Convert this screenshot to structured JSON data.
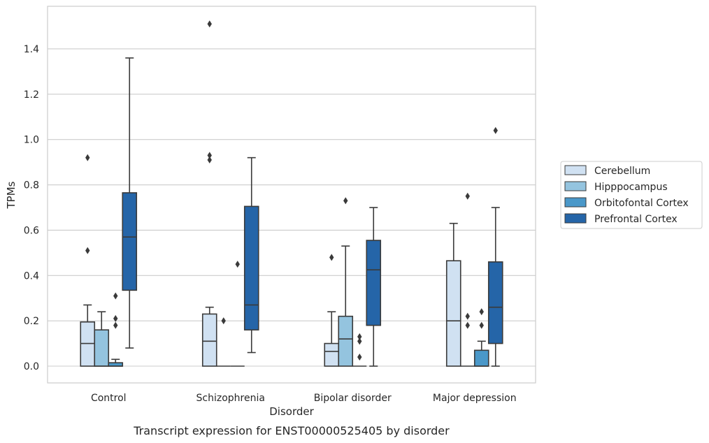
{
  "chart_data": {
    "type": "box",
    "title": "",
    "caption": "Transcript expression for ENST00000525405 by disorder",
    "xlabel": "Disorder",
    "ylabel": "TPMs",
    "ylim": [
      -0.07,
      1.6
    ],
    "yticks": [
      "0.0",
      "0.2",
      "0.4",
      "0.6",
      "0.8",
      "1.0",
      "1.2",
      "1.4"
    ],
    "grid": "horizontal",
    "legend_position": "right",
    "categories": [
      "Control",
      "Schizophrenia",
      "Bipolar disorder",
      "Major depression"
    ],
    "series": [
      {
        "name": "Cerebellum",
        "color": "#d0e1f2",
        "boxes": [
          {
            "whislo": 0.0,
            "q1": 0.0,
            "med": 0.1,
            "q3": 0.195,
            "whishi": 0.27,
            "fliers": [
              0.51,
              0.92
            ]
          },
          {
            "whislo": 0.0,
            "q1": 0.0,
            "med": 0.11,
            "q3": 0.23,
            "whishi": 0.26,
            "fliers": [
              0.91,
              0.93,
              1.51
            ]
          },
          {
            "whislo": 0.0,
            "q1": 0.0,
            "med": 0.065,
            "q3": 0.1,
            "whishi": 0.24,
            "fliers": [
              0.48
            ]
          },
          {
            "whislo": 0.0,
            "q1": 0.0,
            "med": 0.2,
            "q3": 0.465,
            "whishi": 0.63,
            "fliers": []
          }
        ]
      },
      {
        "name": "Hipppocampus",
        "color": "#94c4df",
        "boxes": [
          {
            "whislo": 0.0,
            "q1": 0.0,
            "med": 0.0,
            "q3": 0.16,
            "whishi": 0.24,
            "fliers": []
          },
          {
            "whislo": 0.0,
            "q1": 0.0,
            "med": 0.0,
            "q3": 0.0,
            "whishi": 0.0,
            "fliers": [
              0.2
            ]
          },
          {
            "whislo": 0.0,
            "q1": 0.0,
            "med": 0.12,
            "q3": 0.22,
            "whishi": 0.53,
            "fliers": [
              0.73
            ]
          },
          {
            "whislo": 0.0,
            "q1": 0.0,
            "med": 0.0,
            "q3": 0.0,
            "whishi": 0.0,
            "fliers": [
              0.18,
              0.22,
              0.75
            ]
          }
        ]
      },
      {
        "name": "Orbitofontal Cortex",
        "color": "#4a98c9",
        "boxes": [
          {
            "whislo": 0.0,
            "q1": 0.0,
            "med": 0.0,
            "q3": 0.015,
            "whishi": 0.03,
            "fliers": [
              0.18,
              0.21,
              0.31
            ]
          },
          {
            "whislo": 0.0,
            "q1": 0.0,
            "med": 0.0,
            "q3": 0.0,
            "whishi": 0.0,
            "fliers": [
              0.45
            ]
          },
          {
            "whislo": 0.0,
            "q1": 0.0,
            "med": 0.0,
            "q3": 0.0,
            "whishi": 0.0,
            "fliers": [
              0.04,
              0.11,
              0.13
            ]
          },
          {
            "whislo": 0.0,
            "q1": 0.0,
            "med": 0.0,
            "q3": 0.07,
            "whishi": 0.11,
            "fliers": [
              0.18,
              0.24
            ]
          }
        ]
      },
      {
        "name": "Prefrontal Cortex",
        "color": "#2565a8",
        "boxes": [
          {
            "whislo": 0.08,
            "q1": 0.335,
            "med": 0.57,
            "q3": 0.765,
            "whishi": 1.36,
            "fliers": []
          },
          {
            "whislo": 0.06,
            "q1": 0.16,
            "med": 0.27,
            "q3": 0.705,
            "whishi": 0.92,
            "fliers": []
          },
          {
            "whislo": 0.0,
            "q1": 0.18,
            "med": 0.425,
            "q3": 0.555,
            "whishi": 0.7,
            "fliers": []
          },
          {
            "whislo": 0.0,
            "q1": 0.1,
            "med": 0.26,
            "q3": 0.46,
            "whishi": 0.7,
            "fliers": [
              1.04
            ]
          }
        ]
      }
    ]
  }
}
